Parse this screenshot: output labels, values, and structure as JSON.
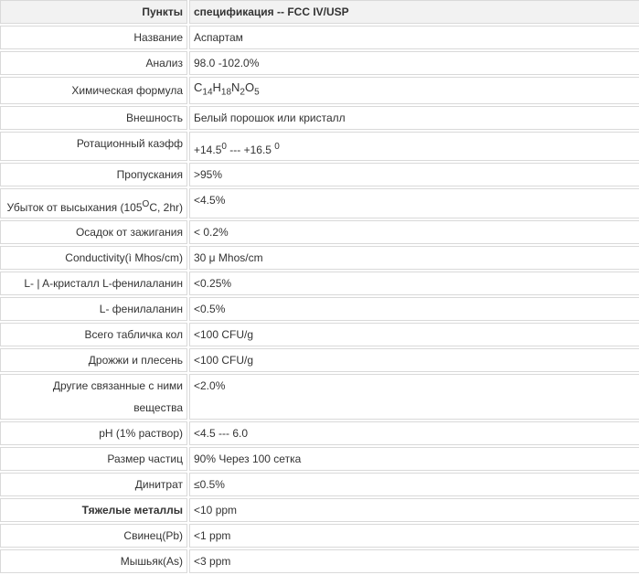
{
  "table": {
    "header": {
      "name": "Пункты",
      "value": "спецификация -- FCC IV/USP"
    },
    "rows": [
      {
        "name": "Название",
        "value": "Аспартам"
      },
      {
        "name": "Анализ",
        "value": "98.0 -102.0%"
      },
      {
        "name": "Химическая формула",
        "formula": [
          "C",
          "14",
          "H",
          "18",
          "N",
          "2",
          "O",
          "5"
        ]
      },
      {
        "name": "Внешность",
        "value": "Белый порошок или кристалл"
      },
      {
        "name": "Ротационный каэфф",
        "rot": [
          "+14.5",
          "0",
          " --- +16.5 ",
          "0"
        ]
      },
      {
        "name": "Пропускания",
        "value": ">95%"
      },
      {
        "name_parts": [
          "Убыток от высыхания (105",
          "O",
          "C, 2hr)"
        ],
        "value": "<4.5%"
      },
      {
        "name": "Осадок от зажигания",
        "value": "< 0.2%"
      },
      {
        "name": "Conductivity(ì Mhos/cm)",
        "value": "30 μ Mhos/cm"
      },
      {
        "name": "L- | A-кристалл L-фенилаланин",
        "value": "<0.25%"
      },
      {
        "name": "L- фенилаланин",
        "value": "<0.5%"
      },
      {
        "name": "Всего табличка кол",
        "value": "<100 CFU/g"
      },
      {
        "name": "Дрожжи и плесень",
        "value": "<100 CFU/g"
      },
      {
        "name": "Другие связанные с ними вещества",
        "value": "<2.0%"
      },
      {
        "name": "pH (1% раствор)",
        "value": "<4.5 --- 6.0"
      },
      {
        "name": "Размер частиц",
        "value": "90% Через 100 сетка"
      },
      {
        "name": "Динитрат",
        "value": "≤0.5%"
      },
      {
        "name": "Тяжелые металлы",
        "value": "<10 ppm"
      },
      {
        "name": "Свинец(Pb)",
        "value": "<1 ppm"
      },
      {
        "name": "Мышьяк(As)",
        "value": "<3 ppm"
      }
    ]
  }
}
